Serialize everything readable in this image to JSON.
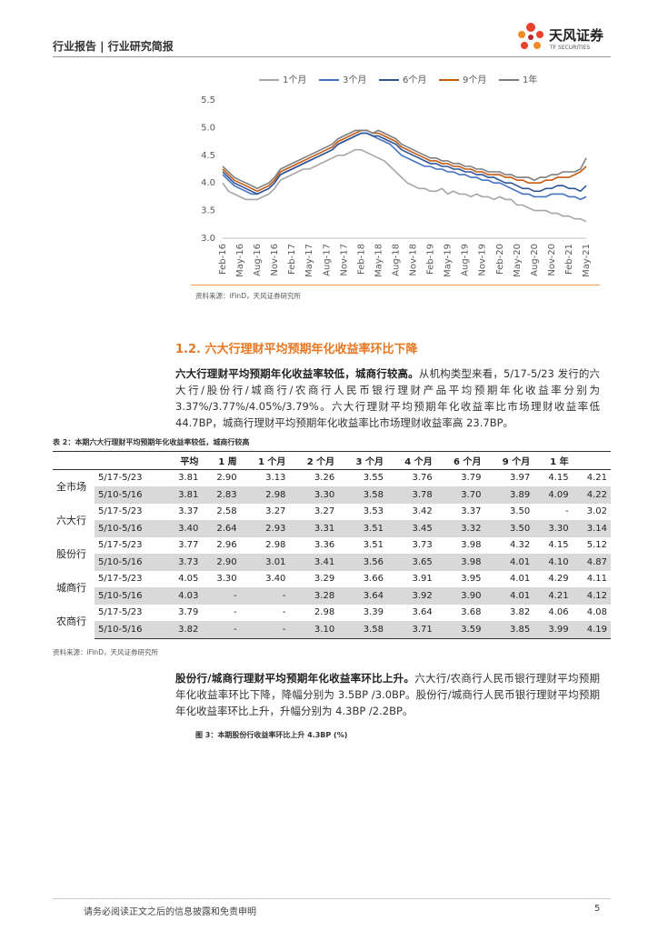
{
  "header": {
    "title": "行业报告 | 行业研究简报",
    "logo_cn": "天风证券",
    "logo_en": "TF SECURITIES"
  },
  "chart_data": {
    "type": "line",
    "categories": [
      "Feb-16",
      null,
      null,
      "May-16",
      null,
      null,
      "Aug-16",
      null,
      null,
      "Nov-16",
      null,
      null,
      "Feb-17",
      null,
      null,
      "May-17",
      null,
      null,
      "Aug-17",
      null,
      null,
      "Nov-17",
      null,
      null,
      "Feb-18",
      null,
      null,
      "May-18",
      null,
      null,
      "Aug-18",
      null,
      null,
      "Nov-18",
      null,
      null,
      "Feb-19",
      null,
      null,
      "May-19",
      null,
      null,
      "Aug-19",
      null,
      null,
      "Nov-19",
      null,
      null,
      "Feb-20",
      null,
      null,
      "May-20",
      null,
      null,
      "Aug-20",
      null,
      null,
      "Nov-20",
      null,
      null,
      "Feb-21",
      null,
      null,
      "May-21"
    ],
    "series": [
      {
        "name": "1个月",
        "color": "#a6a6a6",
        "values": [
          4.0,
          3.85,
          3.8,
          3.75,
          3.7,
          3.7,
          3.7,
          3.75,
          3.8,
          3.9,
          4.05,
          4.1,
          4.15,
          4.2,
          4.25,
          4.25,
          4.3,
          4.35,
          4.4,
          4.45,
          4.5,
          4.5,
          4.55,
          4.6,
          4.6,
          4.55,
          4.5,
          4.45,
          4.4,
          4.3,
          4.2,
          4.1,
          4.0,
          3.95,
          3.9,
          3.9,
          3.85,
          3.85,
          3.9,
          3.8,
          3.85,
          3.8,
          3.8,
          3.75,
          3.8,
          3.75,
          3.75,
          3.7,
          3.75,
          3.7,
          3.7,
          3.6,
          3.6,
          3.55,
          3.5,
          3.5,
          3.5,
          3.45,
          3.45,
          3.4,
          3.4,
          3.35,
          3.35,
          3.3
        ]
      },
      {
        "name": "3个月",
        "color": "#4472c4",
        "values": [
          4.15,
          4.05,
          3.95,
          3.9,
          3.85,
          3.8,
          3.8,
          3.85,
          3.9,
          4.0,
          4.15,
          4.2,
          4.25,
          4.3,
          4.35,
          4.4,
          4.45,
          4.5,
          4.55,
          4.6,
          4.7,
          4.75,
          4.8,
          4.85,
          4.9,
          4.9,
          4.85,
          4.8,
          4.75,
          4.7,
          4.6,
          4.5,
          4.45,
          4.4,
          4.35,
          4.3,
          4.3,
          4.25,
          4.25,
          4.2,
          4.2,
          4.15,
          4.15,
          4.1,
          4.1,
          4.05,
          4.05,
          4.0,
          4.0,
          3.95,
          3.9,
          3.85,
          3.8,
          3.8,
          3.75,
          3.75,
          3.75,
          3.8,
          3.8,
          3.8,
          3.75,
          3.75,
          3.7,
          3.75
        ]
      },
      {
        "name": "6个月",
        "color": "#2f5597",
        "values": [
          4.2,
          4.1,
          4.0,
          3.95,
          3.9,
          3.85,
          3.8,
          3.85,
          3.9,
          4.0,
          4.15,
          4.2,
          4.25,
          4.3,
          4.35,
          4.4,
          4.45,
          4.5,
          4.55,
          4.6,
          4.7,
          4.75,
          4.8,
          4.85,
          4.9,
          4.9,
          4.85,
          4.85,
          4.8,
          4.75,
          4.7,
          4.6,
          4.55,
          4.5,
          4.45,
          4.4,
          4.35,
          4.35,
          4.3,
          4.3,
          4.25,
          4.25,
          4.2,
          4.2,
          4.15,
          4.15,
          4.1,
          4.1,
          4.05,
          4.0,
          4.0,
          3.95,
          3.9,
          3.9,
          3.85,
          3.85,
          3.9,
          3.9,
          3.95,
          3.95,
          3.9,
          3.9,
          3.85,
          3.95
        ]
      },
      {
        "name": "9个月",
        "color": "#c55a11",
        "values": [
          4.25,
          4.15,
          4.05,
          4.0,
          3.95,
          3.9,
          3.85,
          3.9,
          3.95,
          4.05,
          4.2,
          4.25,
          4.3,
          4.35,
          4.4,
          4.45,
          4.5,
          4.55,
          4.6,
          4.65,
          4.75,
          4.8,
          4.85,
          4.9,
          4.95,
          4.95,
          4.9,
          4.9,
          4.85,
          4.8,
          4.75,
          4.65,
          4.6,
          4.55,
          4.5,
          4.45,
          4.4,
          4.4,
          4.35,
          4.35,
          4.3,
          4.3,
          4.25,
          4.25,
          4.2,
          4.2,
          4.15,
          4.15,
          4.15,
          4.1,
          4.1,
          4.05,
          4.05,
          4.0,
          4.0,
          4.0,
          4.05,
          4.05,
          4.1,
          4.1,
          4.1,
          4.15,
          4.2,
          4.3
        ]
      },
      {
        "name": "1年",
        "color": "#7f7f7f",
        "values": [
          4.3,
          4.2,
          4.1,
          4.05,
          4.0,
          3.95,
          3.9,
          3.95,
          4.0,
          4.1,
          4.25,
          4.3,
          4.35,
          4.4,
          4.45,
          4.5,
          4.55,
          4.6,
          4.65,
          4.7,
          4.8,
          4.85,
          4.9,
          4.95,
          4.95,
          4.95,
          4.9,
          4.95,
          4.9,
          4.85,
          4.8,
          4.7,
          4.65,
          4.6,
          4.55,
          4.5,
          4.45,
          4.45,
          4.4,
          4.4,
          4.35,
          4.35,
          4.3,
          4.3,
          4.25,
          4.25,
          4.2,
          4.2,
          4.2,
          4.15,
          4.15,
          4.1,
          4.1,
          4.1,
          4.05,
          4.1,
          4.1,
          4.15,
          4.15,
          4.2,
          4.2,
          4.2,
          4.25,
          4.45
        ]
      }
    ],
    "ylim": [
      3,
      5.5
    ],
    "yticks": [
      {
        "value": 3,
        "label": "3.0"
      },
      3.5,
      {
        "value": 4,
        "label": "4.0"
      },
      4.5,
      {
        "value": 5,
        "label": "5.0"
      },
      5.5
    ],
    "source": "资料来源：iFinD，天风证券研究所"
  },
  "section": {
    "heading": "1.2. 六大行理财平均预期年化收益率环比下降",
    "para1": {
      "lead": "六大行理财平均预期年化收益率较低，城商行较高。",
      "text": "从机构类型来看，5/17-5/23 发行的六大行/股份行/城商行/农商行人民币银行理财产品平均预期年化收益率分别为 3.37%/3.77%/4.05%/3.79%。六大行理财平均预期年化收益率比市场理财收益率低 44.7BP，城商行理财平均预期年化收益率比市场理财收益率高 23.7BP。"
    },
    "para2": {
      "lead": "股份行/城商行理财平均预期年化收益率环比上升。",
      "text": "六大行/农商行人民币银行理财平均预期年化收益率环比下降，降幅分别为 3.5BP /3.0BP。股份行/城商行人民币银行理财平均预期年化收益率环比上升，升幅分别为 4.3BP /2.2BP。"
    },
    "figure_caption": "图 3：本期股份行收益率环比上升 4.3BP (%)"
  },
  "table": {
    "caption": "表 2：本期六大行理财平均预期年化收益率较低，城商行较高",
    "header": [
      "平均",
      "1 周",
      "1 个月",
      "2 个月",
      "3 个月",
      "4 个月",
      "6 个月",
      "9 个月",
      "1 年"
    ],
    "groups": [
      {
        "name": "全市场",
        "rows": [
          [
            "5/17-5/23",
            "3.81",
            "2.90",
            "3.13",
            "3.26",
            "3.55",
            "3.76",
            "3.79",
            "3.97",
            "4.15",
            "4.21"
          ],
          [
            "5/10-5/16",
            "3.81",
            "2.83",
            "2.98",
            "3.30",
            "3.58",
            "3.78",
            "3.70",
            "3.89",
            "4.09",
            "4.22"
          ]
        ]
      },
      {
        "name": "六大行",
        "rows": [
          [
            "5/17-5/23",
            "3.37",
            "2.58",
            "3.27",
            "3.27",
            "3.53",
            "3.42",
            "3.37",
            "3.50",
            "-",
            "3.02"
          ],
          [
            "5/10-5/16",
            "3.40",
            "2.64",
            "2.93",
            "3.31",
            "3.51",
            "3.45",
            "3.32",
            "3.50",
            "3.30",
            "3.14"
          ]
        ]
      },
      {
        "name": "股份行",
        "rows": [
          [
            "5/17-5/23",
            "3.77",
            "2.96",
            "2.98",
            "3.36",
            "3.51",
            "3.73",
            "3.98",
            "4.32",
            "4.15",
            "5.12"
          ],
          [
            "5/10-5/16",
            "3.73",
            "2.90",
            "3.01",
            "3.41",
            "3.56",
            "3.65",
            "3.98",
            "4.01",
            "4.10",
            "4.87"
          ]
        ]
      },
      {
        "name": "城商行",
        "rows": [
          [
            "5/17-5/23",
            "4.05",
            "3.30",
            "3.40",
            "3.29",
            "3.66",
            "3.91",
            "3.95",
            "4.01",
            "4.29",
            "4.11"
          ],
          [
            "5/10-5/16",
            "4.03",
            "-",
            "-",
            "3.28",
            "3.64",
            "3.92",
            "3.90",
            "4.01",
            "4.21",
            "4.12"
          ]
        ]
      },
      {
        "name": "农商行",
        "rows": [
          [
            "5/17-5/23",
            "3.79",
            "-",
            "-",
            "2.98",
            "3.39",
            "3.64",
            "3.68",
            "3.82",
            "4.06",
            "4.08"
          ],
          [
            "5/10-5/16",
            "3.82",
            "-",
            "-",
            "3.10",
            "3.58",
            "3.71",
            "3.59",
            "3.85",
            "3.99",
            "4.19"
          ]
        ]
      }
    ],
    "source": "资料来源：iFinD，天风证券研究所"
  },
  "footer": {
    "disclaimer": "请务必阅读正文之后的信息披露和免责申明",
    "page": "5"
  }
}
